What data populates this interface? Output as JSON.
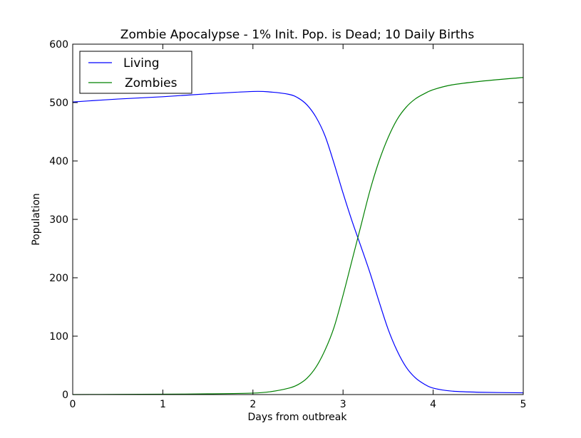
{
  "chart_data": {
    "type": "line",
    "title": "Zombie Apocalypse - 1% Init. Pop. is Dead; 10 Daily Births",
    "xlabel": "Days from outbreak",
    "ylabel": "Population",
    "xlim": [
      0,
      5
    ],
    "ylim": [
      0,
      600
    ],
    "xticks": [
      "0",
      "1",
      "2",
      "3",
      "4",
      "5"
    ],
    "yticks": [
      "0",
      "100",
      "200",
      "300",
      "400",
      "500",
      "600"
    ],
    "grid": false,
    "legend_position": "top-left",
    "series": [
      {
        "name": "Living",
        "color": "#0000ff",
        "x": [
          0,
          0.5,
          1,
          1.5,
          2,
          2.2,
          2.4,
          2.5,
          2.6,
          2.7,
          2.8,
          2.9,
          3.0,
          3.1,
          3.2,
          3.3,
          3.4,
          3.5,
          3.6,
          3.7,
          3.8,
          3.9,
          4.0,
          4.2,
          4.5,
          5.0
        ],
        "y": [
          501,
          506,
          510,
          515,
          519,
          518,
          514,
          508,
          496,
          475,
          443,
          396,
          345,
          297,
          253,
          208,
          159,
          112,
          75,
          47,
          29,
          18,
          11,
          6,
          4,
          3
        ]
      },
      {
        "name": "Zombies",
        "color": "#008000",
        "x": [
          0,
          0.5,
          1,
          1.5,
          2,
          2.2,
          2.4,
          2.5,
          2.6,
          2.7,
          2.8,
          2.9,
          3.0,
          3.1,
          3.2,
          3.3,
          3.4,
          3.5,
          3.6,
          3.7,
          3.8,
          3.9,
          4.0,
          4.2,
          4.5,
          5.0
        ],
        "y": [
          0,
          0.3,
          0.6,
          1.2,
          2.5,
          5,
          11,
          17,
          28,
          47,
          76,
          115,
          170,
          230,
          290,
          350,
          400,
          440,
          471,
          492,
          506,
          515,
          522,
          530,
          536,
          543
        ]
      }
    ]
  }
}
